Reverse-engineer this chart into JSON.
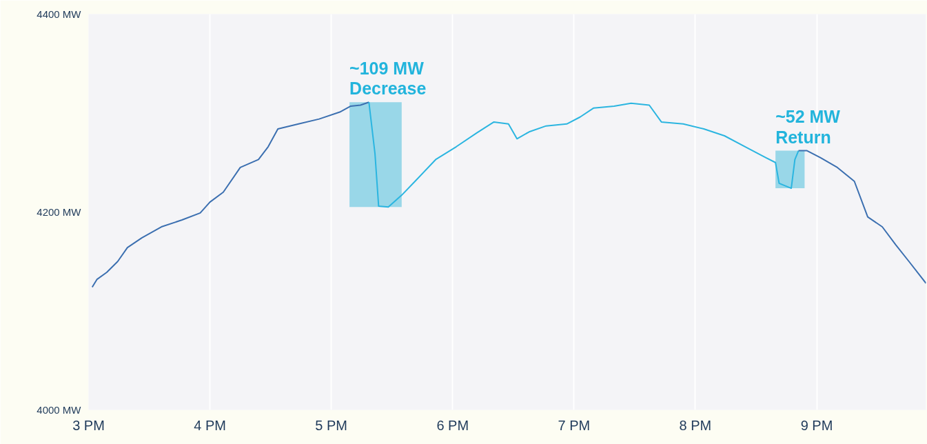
{
  "chart_data": {
    "type": "line",
    "xlim": [
      3.0,
      9.9
    ],
    "ylim": [
      4000,
      4400
    ],
    "xticks": [
      {
        "value": 3,
        "label": "3 PM"
      },
      {
        "value": 4,
        "label": "4 PM"
      },
      {
        "value": 5,
        "label": "5 PM"
      },
      {
        "value": 6,
        "label": "6 PM"
      },
      {
        "value": 7,
        "label": "7 PM"
      },
      {
        "value": 8,
        "label": "8 PM"
      },
      {
        "value": 9,
        "label": "9 PM"
      }
    ],
    "yticks": [
      {
        "value": 4000,
        "label": "4000 MW"
      },
      {
        "value": 4200,
        "label": "4200 MW"
      },
      {
        "value": 4400,
        "label": "4400 MW"
      }
    ],
    "grid": "x",
    "series": [
      {
        "color": "#3b6fb0",
        "x": [
          3.03,
          3.07,
          3.15,
          3.24,
          3.32,
          3.44,
          3.6,
          3.77,
          3.92,
          4.0,
          4.11,
          4.25,
          4.4,
          4.48,
          4.56,
          4.73,
          4.9,
          5.07,
          5.16,
          5.24,
          5.31
        ],
        "values": [
          4124,
          4132,
          4139,
          4150,
          4164,
          4174,
          4185,
          4192,
          4199,
          4210,
          4220,
          4245,
          4253,
          4266,
          4284,
          4289,
          4294,
          4301,
          4307,
          4308,
          4311
        ]
      },
      {
        "color": "#2bb5e0",
        "x": [
          5.31,
          5.36,
          5.39,
          5.47,
          5.58,
          5.69,
          5.86,
          6.03,
          6.2,
          6.34,
          6.46,
          6.53,
          6.63,
          6.77,
          6.94,
          7.05,
          7.16,
          7.33,
          7.47,
          7.62,
          7.72,
          7.9,
          8.07,
          8.24,
          8.41,
          8.58,
          8.66,
          8.69,
          8.79,
          8.82,
          8.85
        ],
        "values": [
          4311,
          4259,
          4206,
          4205,
          4217,
          4231,
          4253,
          4266,
          4280,
          4291,
          4289,
          4274,
          4281,
          4287,
          4289,
          4296,
          4305,
          4307,
          4310,
          4308,
          4291,
          4289,
          4284,
          4277,
          4266,
          4255,
          4250,
          4229,
          4224,
          4253,
          4262
        ]
      },
      {
        "color": "#3b6fb0",
        "x": [
          8.85,
          8.92,
          9.03,
          9.17,
          9.31,
          9.42,
          9.54,
          9.65,
          9.76,
          9.9
        ],
        "values": [
          4262,
          4262,
          4255,
          4245,
          4231,
          4195,
          4185,
          4167,
          4150,
          4128
        ]
      }
    ],
    "bands": [
      {
        "axis": "x",
        "from": 5.15,
        "to": 5.58,
        "label": "~109 MW\nDecrease",
        "color": "#4fc0dd"
      },
      {
        "axis": "x",
        "from": 8.66,
        "to": 8.9,
        "label": "~52 MW\nReturn",
        "color": "#4fc0dd"
      }
    ]
  }
}
